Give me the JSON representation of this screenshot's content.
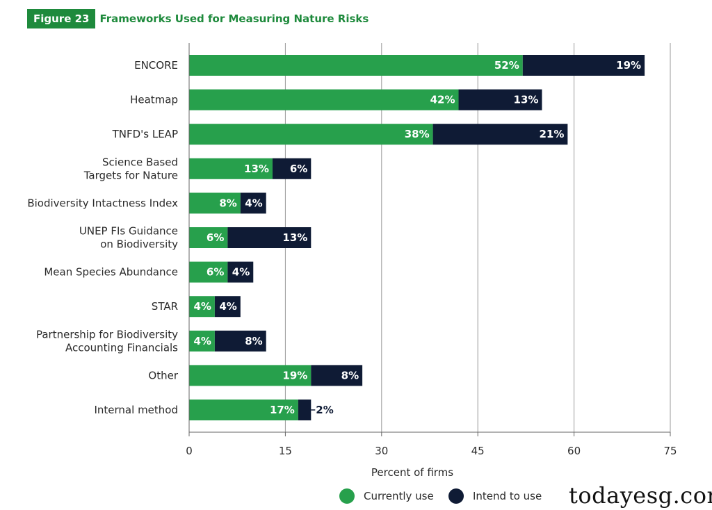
{
  "header": {
    "figure_label": "Figure 23",
    "title": "Frameworks Used for Measuring Nature Risks"
  },
  "watermark": "todayesg.com",
  "colors": {
    "current": "#27a04c",
    "intend": "#0f1b35",
    "title_green": "#1e8a3c",
    "grid": "#9a9a9a",
    "text": "#2a2a2a"
  },
  "chart_data": {
    "type": "bar",
    "orientation": "horizontal",
    "stacked": true,
    "categories": [
      [
        "ENCORE"
      ],
      [
        "Heatmap"
      ],
      [
        "TNFD's LEAP"
      ],
      [
        "Science Based",
        "Targets for Nature"
      ],
      [
        "Biodiversity Intactness Index"
      ],
      [
        "UNEP FIs Guidance",
        "on Biodiversity"
      ],
      [
        "Mean Species Abundance"
      ],
      [
        "STAR"
      ],
      [
        "Partnership for Biodiversity",
        "Accounting Financials"
      ],
      [
        "Other"
      ],
      [
        "Internal method"
      ]
    ],
    "series": [
      {
        "name": "Currently use",
        "values": [
          52,
          42,
          38,
          13,
          8,
          6,
          6,
          4,
          4,
          19,
          17
        ],
        "labels": [
          "52%",
          "42%",
          "38%",
          "13%",
          "8%",
          "6%",
          "6%",
          "4%",
          "4%",
          "19%",
          "17%"
        ]
      },
      {
        "name": "Intend to use",
        "values": [
          19,
          13,
          21,
          6,
          4,
          13,
          4,
          4,
          8,
          8,
          2
        ],
        "labels": [
          "19%",
          "13%",
          "21%",
          "6%",
          "4%",
          "13%",
          "4%",
          "4%",
          "8%",
          "8%",
          "2%"
        ]
      }
    ],
    "xlabel": "Percent of firms",
    "xlim": [
      0,
      75
    ],
    "xticks": [
      0,
      15,
      30,
      45,
      60,
      75
    ],
    "xtick_labels": [
      "0",
      "15",
      "30",
      "45",
      "60",
      "75"
    ],
    "grid": "vertical",
    "legend": "bottom"
  }
}
